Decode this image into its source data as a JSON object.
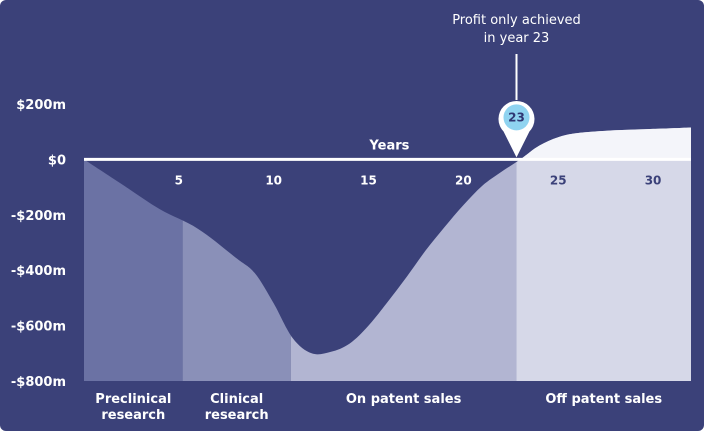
{
  "colors": {
    "background": "#3b4179",
    "preclinical": "#6b72a4",
    "clinical": "#8a90b8",
    "on_patent": "#b2b5d2",
    "off_patent": "#d6d8e8",
    "zero_line": "#ffffff",
    "pin": "#8fd3f0"
  },
  "chart_data": {
    "type": "area",
    "title": "",
    "xlabel": "Years",
    "ylabel": "",
    "xlim": [
      0,
      32
    ],
    "ylim": [
      -800,
      200
    ],
    "x_ticks": [
      5,
      10,
      15,
      20,
      25,
      30
    ],
    "x_tick_labels": [
      "5",
      "10",
      "15",
      "20",
      "25",
      "30"
    ],
    "y_ticks": [
      200,
      0,
      -200,
      -400,
      -600,
      -800
    ],
    "y_tick_labels": [
      "$200m",
      "$0",
      "-$200m",
      "-$400m",
      "-$600m",
      "-$800m"
    ],
    "series": [
      {
        "x": [
          0,
          2,
          4,
          6,
          8,
          9,
          10,
          11,
          12,
          13,
          14,
          15,
          16,
          17,
          18,
          19,
          20,
          21,
          22,
          23,
          24,
          25,
          26,
          28,
          30,
          32
        ],
        "y": [
          0,
          -90,
          -180,
          -250,
          -355,
          -410,
          -520,
          -645,
          -700,
          -695,
          -665,
          -600,
          -515,
          -425,
          -330,
          -245,
          -165,
          -95,
          -45,
          0,
          50,
          80,
          95,
          105,
          110,
          115
        ]
      }
    ],
    "phases": [
      {
        "label_lines": [
          "Preclinical",
          "research"
        ],
        "x_start": 0,
        "x_end": 5.2
      },
      {
        "label_lines": [
          "Clinical",
          "research"
        ],
        "x_start": 5.2,
        "x_end": 10.9
      },
      {
        "label_lines": [
          "On patent sales"
        ],
        "x_start": 10.9,
        "x_end": 22.8
      },
      {
        "label_lines": [
          "Off patent sales"
        ],
        "x_start": 22.8,
        "x_end": 32
      }
    ],
    "annotation": {
      "x": 22.8,
      "pin_label": "23",
      "text_lines": [
        "Profit only achieved",
        "in year 23"
      ]
    },
    "grid": false,
    "legend": "none"
  }
}
